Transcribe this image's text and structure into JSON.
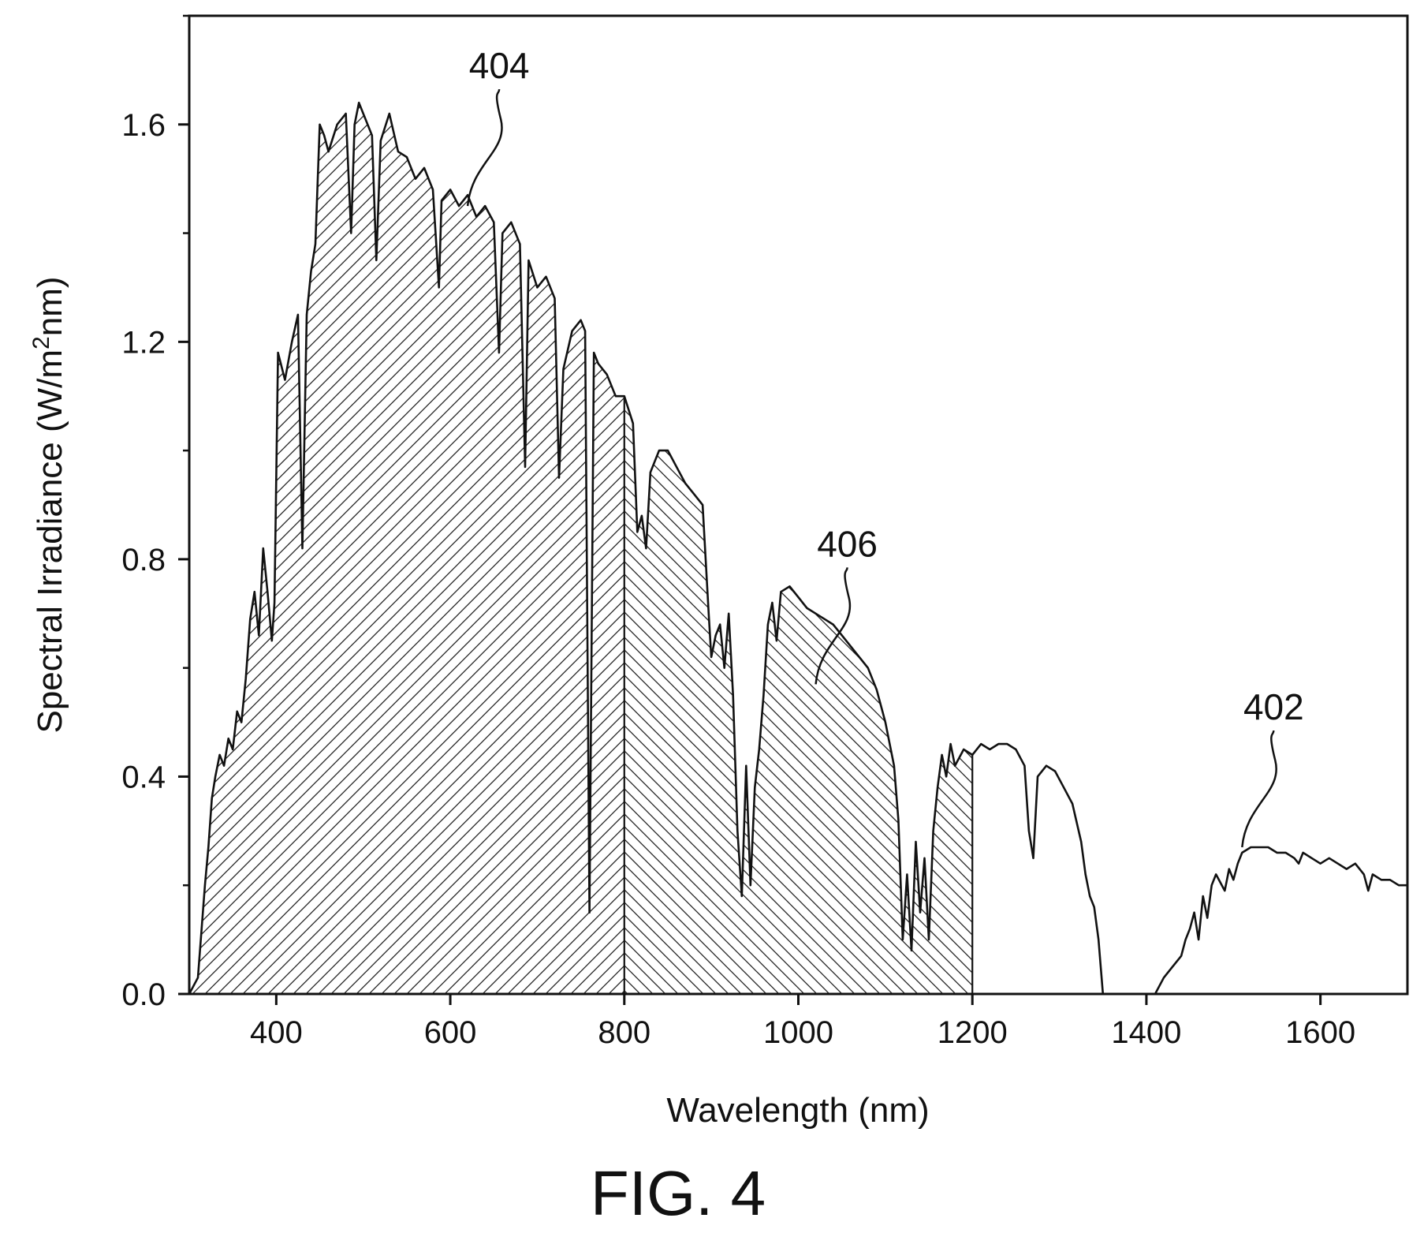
{
  "figure": {
    "caption": "FIG. 4"
  },
  "chart_data": {
    "type": "area",
    "xlabel": "Wavelength (nm)",
    "ylabel": {
      "prefix": "Spectral Irradiance (W/m",
      "sup": "2",
      "suffix": "nm)"
    },
    "xlim": [
      300,
      1700
    ],
    "ylim": [
      0,
      1.8
    ],
    "x_ticks": [
      400,
      600,
      800,
      1000,
      1200,
      1400,
      1600
    ],
    "y_ticks": [
      0.0,
      0.4,
      0.8,
      1.2,
      1.6
    ],
    "x_tick_labels": [
      "400",
      "600",
      "800",
      "1000",
      "1200",
      "1400",
      "1600"
    ],
    "y_tick_labels": [
      "0.0",
      "0.4",
      "0.8",
      "1.2",
      "1.6"
    ],
    "grid": false,
    "series": [
      {
        "values": [
          [
            300,
            0.0
          ],
          [
            310,
            0.03
          ],
          [
            318,
            0.2
          ],
          [
            322,
            0.27
          ],
          [
            326,
            0.36
          ],
          [
            330,
            0.4
          ],
          [
            335,
            0.44
          ],
          [
            340,
            0.42
          ],
          [
            345,
            0.47
          ],
          [
            350,
            0.45
          ],
          [
            355,
            0.52
          ],
          [
            360,
            0.5
          ],
          [
            365,
            0.58
          ],
          [
            370,
            0.69
          ],
          [
            375,
            0.74
          ],
          [
            380,
            0.66
          ],
          [
            385,
            0.82
          ],
          [
            390,
            0.74
          ],
          [
            395,
            0.65
          ],
          [
            398,
            0.72
          ],
          [
            402,
            1.18
          ],
          [
            410,
            1.13
          ],
          [
            418,
            1.2
          ],
          [
            425,
            1.25
          ],
          [
            430,
            0.82
          ],
          [
            435,
            1.25
          ],
          [
            440,
            1.33
          ],
          [
            445,
            1.38
          ],
          [
            450,
            1.6
          ],
          [
            455,
            1.58
          ],
          [
            460,
            1.55
          ],
          [
            470,
            1.6
          ],
          [
            480,
            1.62
          ],
          [
            486,
            1.4
          ],
          [
            490,
            1.6
          ],
          [
            495,
            1.64
          ],
          [
            500,
            1.62
          ],
          [
            510,
            1.58
          ],
          [
            515,
            1.35
          ],
          [
            520,
            1.57
          ],
          [
            530,
            1.62
          ],
          [
            540,
            1.55
          ],
          [
            550,
            1.54
          ],
          [
            560,
            1.5
          ],
          [
            570,
            1.52
          ],
          [
            580,
            1.48
          ],
          [
            587,
            1.3
          ],
          [
            590,
            1.46
          ],
          [
            600,
            1.48
          ],
          [
            610,
            1.45
          ],
          [
            620,
            1.47
          ],
          [
            630,
            1.43
          ],
          [
            640,
            1.45
          ],
          [
            650,
            1.42
          ],
          [
            656,
            1.18
          ],
          [
            660,
            1.4
          ],
          [
            670,
            1.42
          ],
          [
            680,
            1.38
          ],
          [
            686,
            0.97
          ],
          [
            690,
            1.35
          ],
          [
            700,
            1.3
          ],
          [
            710,
            1.32
          ],
          [
            720,
            1.28
          ],
          [
            725,
            0.95
          ],
          [
            730,
            1.15
          ],
          [
            740,
            1.22
          ],
          [
            750,
            1.24
          ],
          [
            755,
            1.22
          ],
          [
            760,
            0.15
          ],
          [
            765,
            1.18
          ],
          [
            770,
            1.16
          ],
          [
            780,
            1.14
          ],
          [
            790,
            1.1
          ],
          [
            800,
            1.1
          ],
          [
            810,
            1.05
          ],
          [
            815,
            0.85
          ],
          [
            820,
            0.88
          ],
          [
            825,
            0.82
          ],
          [
            830,
            0.96
          ],
          [
            840,
            1.0
          ],
          [
            850,
            1.0
          ],
          [
            860,
            0.97
          ],
          [
            870,
            0.94
          ],
          [
            880,
            0.92
          ],
          [
            890,
            0.9
          ],
          [
            897,
            0.7
          ],
          [
            900,
            0.62
          ],
          [
            905,
            0.66
          ],
          [
            910,
            0.68
          ],
          [
            915,
            0.6
          ],
          [
            920,
            0.7
          ],
          [
            925,
            0.55
          ],
          [
            930,
            0.3
          ],
          [
            935,
            0.18
          ],
          [
            940,
            0.42
          ],
          [
            945,
            0.2
          ],
          [
            950,
            0.38
          ],
          [
            955,
            0.45
          ],
          [
            960,
            0.55
          ],
          [
            965,
            0.68
          ],
          [
            970,
            0.72
          ],
          [
            975,
            0.65
          ],
          [
            980,
            0.74
          ],
          [
            990,
            0.75
          ],
          [
            1000,
            0.73
          ],
          [
            1010,
            0.71
          ],
          [
            1020,
            0.7
          ],
          [
            1030,
            0.69
          ],
          [
            1040,
            0.68
          ],
          [
            1050,
            0.66
          ],
          [
            1060,
            0.64
          ],
          [
            1070,
            0.62
          ],
          [
            1080,
            0.6
          ],
          [
            1090,
            0.56
          ],
          [
            1100,
            0.5
          ],
          [
            1110,
            0.42
          ],
          [
            1115,
            0.32
          ],
          [
            1120,
            0.1
          ],
          [
            1125,
            0.22
          ],
          [
            1130,
            0.08
          ],
          [
            1135,
            0.28
          ],
          [
            1140,
            0.15
          ],
          [
            1145,
            0.25
          ],
          [
            1150,
            0.1
          ],
          [
            1155,
            0.3
          ],
          [
            1160,
            0.38
          ],
          [
            1165,
            0.44
          ],
          [
            1170,
            0.4
          ],
          [
            1175,
            0.46
          ],
          [
            1180,
            0.42
          ],
          [
            1190,
            0.45
          ],
          [
            1200,
            0.44
          ],
          [
            1210,
            0.46
          ],
          [
            1220,
            0.45
          ],
          [
            1230,
            0.46
          ],
          [
            1240,
            0.46
          ],
          [
            1250,
            0.45
          ],
          [
            1260,
            0.42
          ],
          [
            1265,
            0.3
          ],
          [
            1270,
            0.25
          ],
          [
            1275,
            0.4
          ],
          [
            1285,
            0.42
          ],
          [
            1295,
            0.41
          ],
          [
            1305,
            0.38
          ],
          [
            1315,
            0.35
          ],
          [
            1325,
            0.28
          ],
          [
            1330,
            0.22
          ],
          [
            1335,
            0.18
          ],
          [
            1340,
            0.16
          ],
          [
            1345,
            0.1
          ],
          [
            1350,
            0.0
          ],
          [
            1410,
            0.0
          ],
          [
            1420,
            0.03
          ],
          [
            1430,
            0.05
          ],
          [
            1440,
            0.07
          ],
          [
            1445,
            0.1
          ],
          [
            1450,
            0.12
          ],
          [
            1455,
            0.15
          ],
          [
            1460,
            0.1
          ],
          [
            1465,
            0.18
          ],
          [
            1470,
            0.14
          ],
          [
            1475,
            0.2
          ],
          [
            1480,
            0.22
          ],
          [
            1490,
            0.19
          ],
          [
            1495,
            0.23
          ],
          [
            1500,
            0.21
          ],
          [
            1505,
            0.24
          ],
          [
            1510,
            0.26
          ],
          [
            1520,
            0.27
          ],
          [
            1530,
            0.27
          ],
          [
            1540,
            0.27
          ],
          [
            1550,
            0.26
          ],
          [
            1560,
            0.26
          ],
          [
            1570,
            0.25
          ],
          [
            1575,
            0.24
          ],
          [
            1580,
            0.26
          ],
          [
            1590,
            0.25
          ],
          [
            1600,
            0.24
          ],
          [
            1610,
            0.25
          ],
          [
            1620,
            0.24
          ],
          [
            1630,
            0.23
          ],
          [
            1640,
            0.24
          ],
          [
            1650,
            0.22
          ],
          [
            1655,
            0.19
          ],
          [
            1660,
            0.22
          ],
          [
            1670,
            0.21
          ],
          [
            1680,
            0.21
          ],
          [
            1690,
            0.2
          ],
          [
            1700,
            0.2
          ]
        ]
      }
    ],
    "shaded_regions": [
      {
        "x_range": [
          300,
          800
        ],
        "hatch": "forward-diagonal"
      },
      {
        "x_range": [
          800,
          1200
        ],
        "hatch": "backward-diagonal"
      }
    ],
    "annotations": [
      {
        "text": "404",
        "x": 620,
        "y": 1.45
      },
      {
        "text": "406",
        "x": 1020,
        "y": 0.57
      },
      {
        "text": "402",
        "x": 1510,
        "y": 0.27
      }
    ]
  }
}
